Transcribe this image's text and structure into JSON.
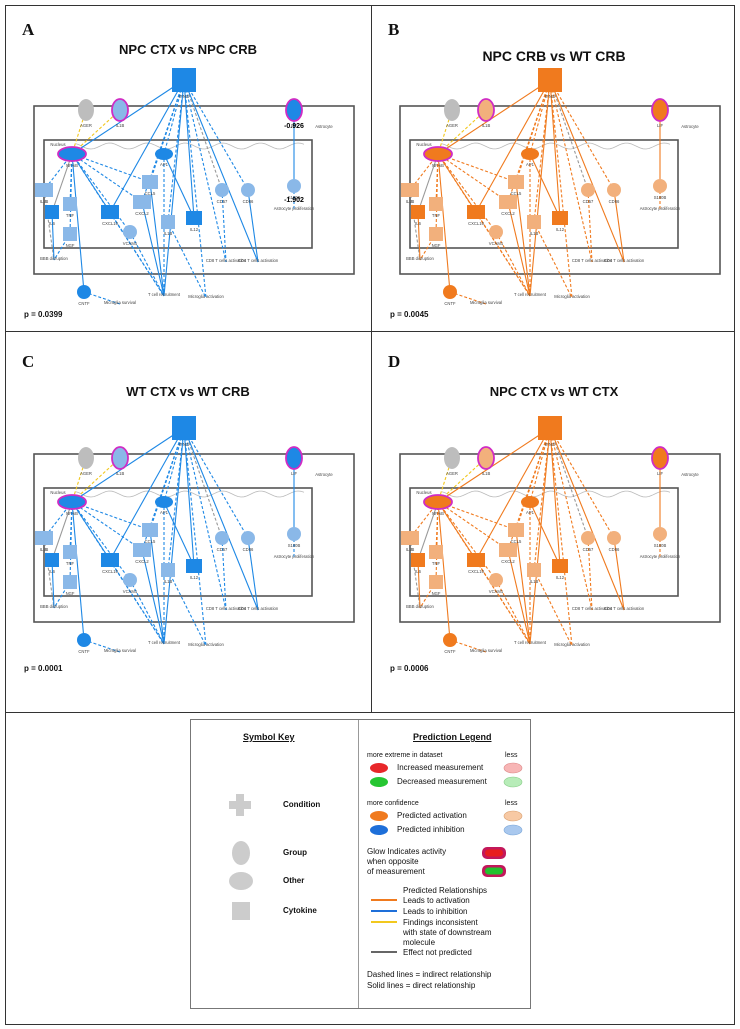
{
  "panels": [
    {
      "label": "A",
      "title": "NPC CTX vs NPC CRB",
      "p": "p = 0.0399",
      "scheme": "blue",
      "nodes": [
        "IFNG",
        "AGER",
        "IL1B",
        "LIF",
        "Astrocyte",
        "NF-kB",
        "AP1",
        "Nucleus",
        "IL1B",
        "IL6",
        "TNF",
        "CCL5",
        "CXCL10",
        "CXCL2",
        "IL1B",
        "IL12",
        "CD57",
        "CD86",
        "Astrocyte proliferation",
        "BBB disruption",
        "NGF",
        "CNTF",
        "VCAM1",
        "Microglia survival",
        "T cell recruitment",
        "Microglia activation",
        "CD8 T cells activation",
        "CD4 T cells activation",
        "S100B"
      ],
      "values": [
        "-0.926",
        "-1.902"
      ]
    },
    {
      "label": "B",
      "title": "NPC CRB vs WT CRB",
      "p": "p = 0.0045",
      "scheme": "orange",
      "nodes": [
        "IFNG",
        "AGER",
        "IL1B",
        "LIF",
        "Astrocyte",
        "NF-kB",
        "AP1",
        "Nucleus",
        "IL1B",
        "IL6",
        "TNF",
        "CCL5",
        "CXCL10",
        "CXCL2",
        "IL1B",
        "IL12",
        "CD57",
        "CD86",
        "Astrocyte proliferation",
        "BBB disruption",
        "NGF",
        "CNTF",
        "VCAM1",
        "Microglia survival",
        "T cell recruitment",
        "Microglia activation",
        "CD8 T cells activation",
        "CD4 T cells activation",
        "S100B"
      ],
      "values": []
    },
    {
      "label": "C",
      "title": "WT CTX vs WT CRB",
      "p": "p = 0.0001",
      "scheme": "blue",
      "nodes": [
        "IFNG",
        "AGER",
        "IL1B",
        "LIF",
        "Astrocyte",
        "NF-kB",
        "AP1",
        "Nucleus",
        "IL1B",
        "IL6",
        "TNF",
        "CCL5",
        "CXCL10",
        "CXCL2",
        "IL1B",
        "IL12",
        "CD57",
        "CD86",
        "Astrocyte proliferation",
        "BBB disruption",
        "NGF",
        "CNTF",
        "VCAM1",
        "Microglia survival",
        "T cell recruitment",
        "Microglia activation",
        "CD8 T cells activation",
        "CD4 T cells activation",
        "S100B"
      ],
      "values": []
    },
    {
      "label": "D",
      "title": "NPC CTX vs WT CTX",
      "p": "p = 0.0006",
      "scheme": "orange",
      "nodes": [
        "IFNG",
        "AGER",
        "IL1B",
        "LIF",
        "Astrocyte",
        "NF-kB",
        "AP1",
        "Nucleus",
        "IL1B",
        "IL6",
        "TNF",
        "CCL5",
        "CXCL10",
        "CXCL2",
        "IL1B",
        "IL12",
        "CD57",
        "CD86",
        "Astrocyte proliferation",
        "BBB disruption",
        "NGF",
        "CNTF",
        "VCAM1",
        "Microglia survival",
        "T cell recruitment",
        "Microglia activation",
        "CD8 T cells activation",
        "CD4 T cells activation",
        "S100B"
      ],
      "values": []
    }
  ],
  "legend": {
    "symbol_key_title": "Symbol Key",
    "symbols": [
      "Condition",
      "Group",
      "Other",
      "Cytokine"
    ],
    "prediction_title": "Prediction Legend",
    "more_extreme": "more extreme in dataset",
    "less": "less",
    "increased": "Increased measurement",
    "decreased": "Decreased measurement",
    "more_confidence": "more confidence",
    "predicted_activation": "Predicted activation",
    "predicted_inhibition": "Predicted inhibition",
    "glow_1": "Glow Indicates activity",
    "glow_2": "when opposite",
    "glow_3": "of measurement",
    "relationships_title": "Predicted Relationships",
    "rel_activation": "Leads to activation",
    "rel_inhibition": "Leads to inhibition",
    "rel_inconsistent_1": "Findings inconsistent",
    "rel_inconsistent_2": "with state of downstream",
    "rel_inconsistent_3": "molecule",
    "rel_not_predicted": "Effect not predicted",
    "dashed": "Dashed lines = indirect relationship",
    "solid": "Solid lines = direct relationship"
  },
  "colors": {
    "blue": "#1e88e5",
    "orange": "#f07a1e",
    "lightblue": "#8ab8e8",
    "lightorange": "#f2b07c",
    "grey": "#bdbdbd",
    "magenta": "#d02cc4",
    "yellow": "#f2c81e"
  }
}
